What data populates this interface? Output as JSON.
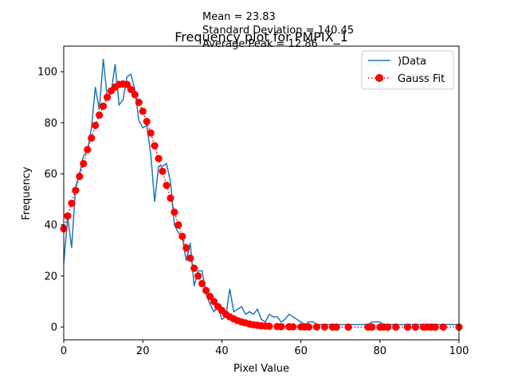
{
  "chart_data": {
    "type": "line",
    "title": "Frequency plot for PMPIX_1",
    "xlabel": "Pixel Value",
    "ylabel": "Frequency",
    "xlim": [
      0,
      100
    ],
    "ylim": [
      -5,
      110
    ],
    "xticks": [
      0,
      20,
      40,
      60,
      80,
      100
    ],
    "yticks": [
      0,
      20,
      40,
      60,
      80,
      100
    ],
    "stats": [
      "Mean = 23.83",
      "Standard Deviation = 140.45",
      "Average Peak = 12.86"
    ],
    "legend_position": "top-right",
    "series": [
      {
        "name": ")Data",
        "style": "line",
        "color": "#1f77b4",
        "x": [
          0,
          1,
          2,
          3,
          4,
          5,
          6,
          7,
          8,
          9,
          10,
          11,
          12,
          13,
          14,
          15,
          16,
          17,
          18,
          19,
          20,
          21,
          22,
          23,
          24,
          25,
          26,
          27,
          28,
          29,
          30,
          31,
          32,
          33,
          34,
          35,
          36,
          37,
          38,
          39,
          40,
          41,
          42,
          43,
          44,
          45,
          46,
          47,
          48,
          49,
          50,
          51,
          52,
          53,
          54,
          55,
          56,
          57,
          58,
          59,
          60,
          61,
          62,
          63,
          64,
          65,
          66,
          67,
          68,
          69,
          70,
          71,
          72,
          73,
          74,
          75,
          76,
          77,
          78,
          79,
          80,
          81,
          82,
          83,
          84,
          85,
          86,
          87,
          88,
          89,
          90,
          91,
          92,
          93,
          94,
          95,
          96,
          97,
          98,
          99,
          100
        ],
        "y": [
          25,
          43,
          31,
          55,
          60,
          67,
          69,
          78,
          94,
          85,
          105,
          90,
          92,
          103,
          87,
          89,
          98,
          99,
          93,
          81,
          78,
          79,
          68,
          49,
          63,
          63,
          64,
          57,
          40,
          37,
          35,
          26,
          33,
          16,
          22,
          22,
          13,
          9,
          6,
          8,
          3,
          4,
          15,
          6,
          7,
          8,
          5,
          6,
          5,
          7,
          3,
          2,
          5,
          4,
          4,
          2,
          3,
          5,
          4,
          3,
          2,
          1,
          2,
          2,
          1,
          1,
          1,
          1,
          1,
          1,
          1,
          1,
          1,
          1,
          1,
          1,
          1,
          1,
          2,
          2,
          2,
          1,
          1,
          1,
          1,
          1,
          1,
          1,
          1,
          1,
          1,
          1,
          1,
          1,
          1,
          1,
          1,
          1,
          1,
          1,
          1
        ]
      },
      {
        "name": "Gauss Fit",
        "style": "dotted-markers",
        "color": "#ff0000",
        "x": [
          0,
          1,
          2,
          3,
          4,
          5,
          6,
          7,
          8,
          9,
          10,
          11,
          12,
          13,
          14,
          15,
          16,
          17,
          18,
          19,
          20,
          21,
          22,
          23,
          24,
          25,
          26,
          27,
          28,
          29,
          30,
          31,
          32,
          33,
          34,
          35,
          36,
          37,
          38,
          39,
          40,
          41,
          42,
          43,
          44,
          45,
          46,
          47,
          48,
          49,
          50,
          51,
          52,
          54,
          55,
          57,
          58,
          60,
          61,
          62,
          64,
          66,
          68,
          69,
          72,
          77,
          78,
          80,
          81,
          82,
          84,
          87,
          89,
          91,
          92,
          93,
          94,
          96,
          100
        ],
        "y": [
          38.5,
          43.5,
          48.5,
          53.5,
          59,
          64,
          69.5,
          74,
          79,
          83,
          86.5,
          90,
          92.5,
          94,
          95,
          95.2,
          95,
          93,
          91,
          88,
          84.5,
          80.5,
          76,
          71,
          66,
          61,
          55.5,
          50.5,
          45,
          40,
          35.5,
          31,
          27,
          23,
          20,
          17,
          14.3,
          12,
          10,
          8,
          6.5,
          5,
          4,
          3.2,
          2.5,
          2,
          1.6,
          1.2,
          0.9,
          0.7,
          0.5,
          0.4,
          0.3,
          0.2,
          0.15,
          0.1,
          0.08,
          0.05,
          0.04,
          0.03,
          0.02,
          0.01,
          0,
          0,
          0,
          0,
          0,
          0,
          0,
          0,
          0,
          0,
          0,
          0,
          0,
          0,
          0,
          0,
          0
        ]
      }
    ]
  }
}
